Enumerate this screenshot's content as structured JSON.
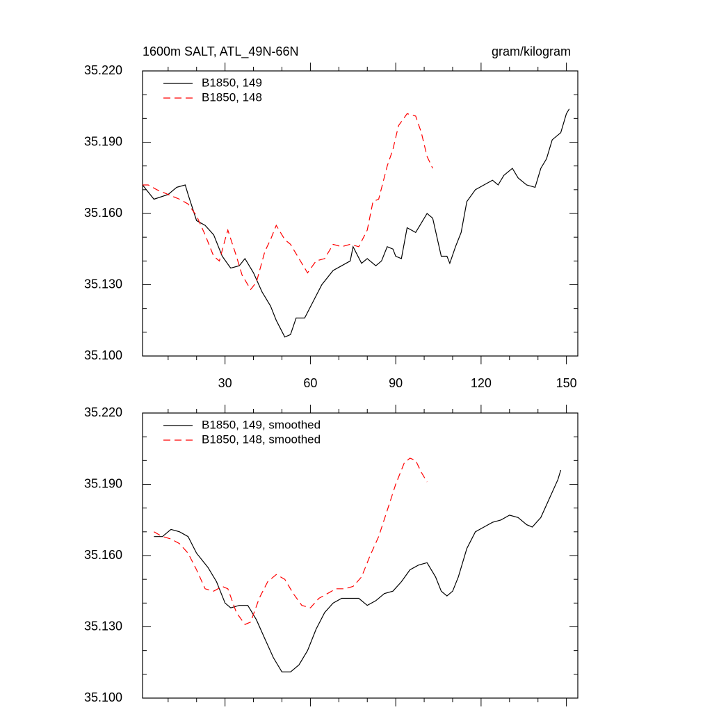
{
  "chart_data": [
    {
      "type": "line",
      "title": "1600m SALT, ATL_49N-66N",
      "right_title": "gram/kilogram",
      "xlim": [
        1,
        154
      ],
      "xticks": [
        30,
        60,
        90,
        120,
        150
      ],
      "xminorticks": [
        10,
        20,
        40,
        50,
        70,
        80,
        100,
        110,
        130,
        140
      ],
      "xtick_labels": true,
      "ylim": [
        35.1,
        35.22
      ],
      "yticks": [
        {
          "value": 35.1,
          "label": "35.100"
        },
        {
          "value": 35.13,
          "label": "35.130"
        },
        {
          "value": 35.16,
          "label": "35.160"
        },
        {
          "value": 35.19,
          "label": "35.190"
        },
        {
          "value": 35.22,
          "label": "35.220"
        }
      ],
      "yminorticks": [
        35.11,
        35.12,
        35.14,
        35.15,
        35.17,
        35.18,
        35.2,
        35.21
      ],
      "legend": "upper left",
      "series": [
        {
          "name": "B1850, 149",
          "color": "#000000",
          "line_style": "solid",
          "x": [
            1,
            5,
            10,
            13,
            16,
            17,
            20,
            23,
            26,
            29,
            32,
            35,
            37,
            40,
            43,
            46,
            48,
            51,
            53,
            55,
            58,
            61,
            64,
            68,
            71,
            74,
            75,
            78,
            80,
            83,
            85,
            87,
            89,
            90,
            92,
            94,
            97,
            99,
            101,
            103,
            106,
            108,
            109,
            111,
            113,
            115,
            118,
            121,
            124,
            126,
            128,
            131,
            133,
            136,
            139,
            141,
            143,
            145,
            148,
            150,
            151
          ],
          "values": [
            35.172,
            35.166,
            35.168,
            35.171,
            35.172,
            35.168,
            35.157,
            35.155,
            35.151,
            35.142,
            35.137,
            35.138,
            35.141,
            35.135,
            35.127,
            35.121,
            35.115,
            35.108,
            35.109,
            35.116,
            35.116,
            35.123,
            35.13,
            35.136,
            35.138,
            35.14,
            35.146,
            35.139,
            35.141,
            35.138,
            35.14,
            35.146,
            35.145,
            35.142,
            35.141,
            35.154,
            35.152,
            35.156,
            35.16,
            35.158,
            35.142,
            35.142,
            35.139,
            35.146,
            35.152,
            35.165,
            35.17,
            35.172,
            35.174,
            35.172,
            35.176,
            35.179,
            35.175,
            35.172,
            35.171,
            35.179,
            35.183,
            35.191,
            35.194,
            35.202,
            35.204
          ]
        },
        {
          "name": "B1850, 148",
          "color": "#ff0000",
          "line_style": "dashed",
          "x": [
            1,
            3,
            6,
            10,
            14,
            17,
            20,
            23,
            26,
            28,
            30,
            31,
            34,
            36,
            39,
            41,
            44,
            46,
            48,
            51,
            53,
            56,
            59,
            62,
            65,
            68,
            71,
            74,
            77,
            80,
            82,
            84,
            87,
            89,
            91,
            94,
            97,
            99,
            101,
            103
          ],
          "values": [
            35.172,
            35.172,
            35.17,
            35.168,
            35.166,
            35.164,
            35.159,
            35.151,
            35.142,
            35.14,
            35.149,
            35.153,
            35.142,
            35.134,
            35.128,
            35.131,
            35.144,
            35.149,
            35.155,
            35.149,
            35.147,
            35.141,
            35.135,
            35.14,
            35.141,
            35.147,
            35.146,
            35.147,
            35.146,
            35.153,
            35.165,
            35.166,
            35.18,
            35.187,
            35.197,
            35.202,
            35.201,
            35.194,
            35.184,
            35.179
          ]
        }
      ]
    },
    {
      "type": "line",
      "xlim": [
        1,
        154
      ],
      "xticks": [
        30,
        60,
        90,
        120,
        150
      ],
      "xminorticks": [
        10,
        20,
        40,
        50,
        70,
        80,
        100,
        110,
        130,
        140
      ],
      "xtick_labels": false,
      "ylim": [
        35.1,
        35.22
      ],
      "yticks": [
        {
          "value": 35.1,
          "label": "35.100"
        },
        {
          "value": 35.13,
          "label": "35.130"
        },
        {
          "value": 35.16,
          "label": "35.160"
        },
        {
          "value": 35.19,
          "label": "35.190"
        },
        {
          "value": 35.22,
          "label": "35.220"
        }
      ],
      "yminorticks": [
        35.11,
        35.12,
        35.14,
        35.15,
        35.17,
        35.18,
        35.2,
        35.21
      ],
      "legend": "upper left",
      "series": [
        {
          "name": "B1850, 149, smoothed",
          "color": "#000000",
          "line_style": "solid",
          "x": [
            5,
            8,
            11,
            14,
            17,
            20,
            24,
            27,
            30,
            32,
            35,
            38,
            41,
            44,
            47,
            50,
            53,
            56,
            59,
            62,
            65,
            68,
            71,
            74,
            77,
            80,
            83,
            86,
            89,
            92,
            95,
            98,
            101,
            104,
            106,
            108,
            110,
            112,
            115,
            118,
            121,
            124,
            127,
            130,
            133,
            136,
            138,
            141,
            144,
            147,
            148
          ],
          "values": [
            35.168,
            35.168,
            35.171,
            35.17,
            35.168,
            35.161,
            35.155,
            35.149,
            35.14,
            35.138,
            35.139,
            35.139,
            35.133,
            35.125,
            35.117,
            35.111,
            35.111,
            35.114,
            35.12,
            35.129,
            35.136,
            35.14,
            35.142,
            35.142,
            35.142,
            35.139,
            35.141,
            35.144,
            35.145,
            35.149,
            35.154,
            35.156,
            35.157,
            35.151,
            35.145,
            35.143,
            35.145,
            35.151,
            35.163,
            35.17,
            35.172,
            35.174,
            35.175,
            35.177,
            35.176,
            35.173,
            35.172,
            35.176,
            35.184,
            35.192,
            35.196
          ]
        },
        {
          "name": "B1850, 148, smoothed",
          "color": "#ff0000",
          "line_style": "dashed",
          "x": [
            5,
            8,
            11,
            14,
            17,
            20,
            23,
            26,
            29,
            31,
            34,
            37,
            39,
            42,
            45,
            48,
            51,
            54,
            57,
            60,
            63,
            66,
            69,
            72,
            75,
            78,
            81,
            84,
            87,
            90,
            93,
            95,
            97,
            99,
            101
          ],
          "values": [
            35.17,
            35.168,
            35.167,
            35.165,
            35.161,
            35.154,
            35.146,
            35.145,
            35.147,
            35.146,
            35.136,
            35.131,
            35.132,
            35.142,
            35.149,
            35.152,
            35.15,
            35.144,
            35.139,
            35.138,
            35.142,
            35.144,
            35.146,
            35.146,
            35.147,
            35.151,
            35.16,
            35.168,
            35.179,
            35.19,
            35.199,
            35.201,
            35.2,
            35.195,
            35.191
          ]
        }
      ]
    }
  ]
}
